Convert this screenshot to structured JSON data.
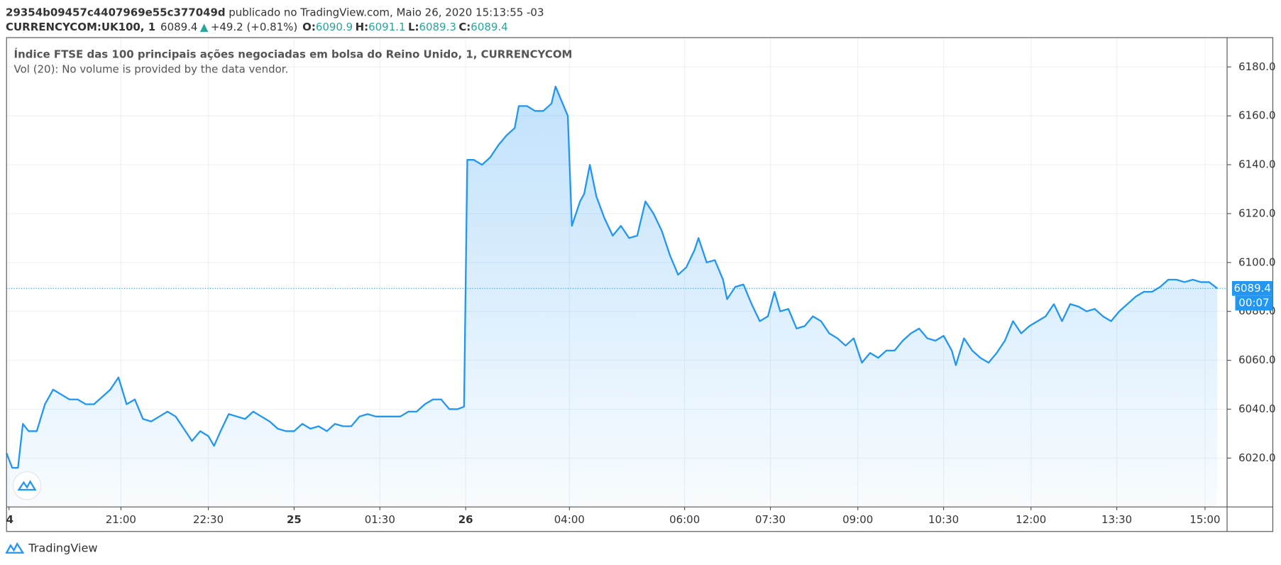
{
  "header": {
    "author": "29354b09457c4407969e55c377049d",
    "published": "publicado no TradingView.com, Maio 26, 2020 15:13:55 -03",
    "symbol": "CURRENCYCOM:UK100, 1",
    "change": "+49.2 (+0.81%)",
    "ohlc": [
      {
        "label": "O:",
        "value": "6090.9"
      },
      {
        "label": "H:",
        "value": "6091.1"
      },
      {
        "label": "L:",
        "value": "6089.3"
      },
      {
        "label": "C:",
        "value": "6089.4"
      }
    ]
  },
  "chart_data": {
    "type": "area",
    "title": "Índice FTSE das 100 principais ações negociadas em bolsa do Reino Unido, 1, CURRENCYCOM",
    "subtitle": "Vol (20): No volume is provided by the data vendor.",
    "x": [
      0,
      7,
      14,
      20,
      27,
      37,
      47,
      57,
      67,
      77,
      87,
      97,
      107,
      117,
      127,
      137,
      147,
      157,
      167,
      177,
      187,
      197,
      207,
      217,
      227,
      237,
      247,
      254,
      262,
      272,
      282,
      292,
      302,
      312,
      322,
      332,
      342,
      352,
      362,
      372,
      382,
      392,
      402,
      412,
      422,
      432,
      442,
      452,
      462,
      472,
      482,
      492,
      502,
      512,
      522,
      532,
      542,
      552,
      560,
      564,
      572,
      582,
      592,
      602,
      612,
      622,
      627,
      637,
      647,
      657,
      667,
      672,
      682,
      687,
      692,
      702,
      707,
      714,
      722,
      732,
      742,
      752,
      762,
      772,
      782,
      792,
      802,
      812,
      822,
      832,
      842,
      847,
      857,
      867,
      877,
      882,
      892,
      902,
      912,
      922,
      932,
      940,
      947,
      957,
      967,
      977,
      987,
      997,
      1007,
      1017,
      1027,
      1037,
      1047,
      1057,
      1067,
      1077,
      1087,
      1097,
      1107,
      1117,
      1127,
      1137,
      1147,
      1157,
      1162,
      1172,
      1182,
      1192,
      1202,
      1212,
      1222,
      1232,
      1242,
      1252,
      1262,
      1272,
      1282,
      1292,
      1302,
      1312,
      1322,
      1332,
      1342,
      1352,
      1362,
      1372,
      1382,
      1392,
      1402,
      1412,
      1422,
      1432,
      1442,
      1452,
      1462,
      1472,
      1482
    ],
    "series": [
      {
        "color": "#2196f3",
        "values": [
          6022,
          6016,
          6016,
          6034,
          6031,
          6031,
          6042,
          6048,
          6046,
          6044,
          6044,
          6042,
          6042,
          6045,
          6048,
          6053,
          6042,
          6044,
          6036,
          6035,
          6037,
          6039,
          6037,
          6032,
          6027,
          6031,
          6029,
          6025,
          6031,
          6038,
          6037,
          6036,
          6039,
          6037,
          6035,
          6032,
          6031,
          6031,
          6034,
          6032,
          6033,
          6031,
          6034,
          6033,
          6033,
          6037,
          6038,
          6037,
          6037,
          6037,
          6037,
          6039,
          6039,
          6042,
          6044,
          6044,
          6040,
          6040,
          6041,
          6142,
          6142,
          6140,
          6143,
          6148,
          6152,
          6155,
          6164,
          6164,
          6162,
          6162,
          6165,
          6172,
          6164,
          6160,
          6115,
          6125,
          6128,
          6140,
          6127,
          6118,
          6111,
          6115,
          6110,
          6111,
          6125,
          6120,
          6113,
          6103,
          6095,
          6098,
          6105,
          6110,
          6100,
          6101,
          6093,
          6085,
          6090,
          6091,
          6083,
          6076,
          6078,
          6088,
          6080,
          6081,
          6073,
          6074,
          6078,
          6076,
          6071,
          6069,
          6066,
          6069,
          6059,
          6063,
          6061,
          6064,
          6064,
          6068,
          6071,
          6073,
          6069,
          6068,
          6070,
          6064,
          6058,
          6069,
          6064,
          6061,
          6059,
          6063,
          6068,
          6076,
          6071,
          6074,
          6076,
          6078,
          6083,
          6076,
          6083,
          6082,
          6080,
          6081,
          6078,
          6076,
          6080,
          6083,
          6086,
          6088,
          6088,
          6090,
          6093,
          6093,
          6092,
          6093,
          6092,
          6092,
          6089.4
        ]
      }
    ],
    "xlim": [
      0,
      1494
    ],
    "xticks": [
      {
        "value": 3,
        "label": "4"
      },
      {
        "value": 140,
        "label": "21:00"
      },
      {
        "value": 247,
        "label": "22:30"
      },
      {
        "value": 352,
        "label": "25"
      },
      {
        "value": 457,
        "label": "01:30"
      },
      {
        "value": 562,
        "label": "26"
      },
      {
        "value": 689,
        "label": "04:00"
      },
      {
        "value": 830,
        "label": "06:00"
      },
      {
        "value": 935,
        "label": "07:30"
      },
      {
        "value": 1042,
        "label": "09:00"
      },
      {
        "value": 1147,
        "label": "10:30"
      },
      {
        "value": 1254,
        "label": "12:00"
      },
      {
        "value": 1359,
        "label": "13:30"
      },
      {
        "value": 1467,
        "label": "15:00"
      }
    ],
    "ylim": [
      6000,
      6192
    ],
    "yticks": [
      {
        "value": 6020,
        "label": "6020.0"
      },
      {
        "value": 6040,
        "label": "6040.0"
      },
      {
        "value": 6060,
        "label": "6060.0"
      },
      {
        "value": 6080,
        "label": "6080.0"
      },
      {
        "value": 6100,
        "label": "6100.0"
      },
      {
        "value": 6120,
        "label": "6120.0"
      },
      {
        "value": 6140,
        "label": "6140.0"
      },
      {
        "value": 6160,
        "label": "6160.0"
      },
      {
        "value": 6180,
        "label": "6180.0"
      }
    ],
    "grid": true,
    "countdown": "00:07"
  },
  "footer": {
    "brand": "TradingView"
  }
}
